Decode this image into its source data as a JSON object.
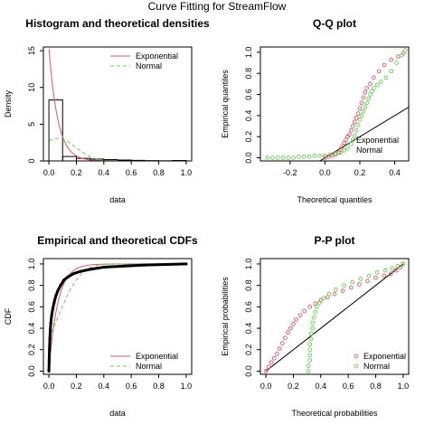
{
  "figure_title": "Curve Fitting for StreamFlow",
  "colors": {
    "exponential": "#DF536B",
    "normal": "#61D04F",
    "data": "#000000"
  },
  "chart_data": [
    {
      "id": "histogram",
      "type": "bar",
      "title": "Histogram and theoretical densities",
      "xlabel": "data",
      "ylabel": "Density",
      "xlim": [
        -0.04,
        1.04
      ],
      "ylim": [
        0,
        15.5
      ],
      "xticks": [
        0.0,
        0.2,
        0.4,
        0.6,
        0.8,
        1.0
      ],
      "xtick_labels": [
        "0.0",
        "0.2",
        "0.4",
        "0.6",
        "0.8",
        "1.0"
      ],
      "yticks": [
        0,
        5,
        10,
        15
      ],
      "ytick_labels": [
        "0",
        "5",
        "10",
        "15"
      ],
      "bins": [
        {
          "x0": 0.0,
          "x1": 0.1,
          "density": 8.3
        },
        {
          "x0": 0.1,
          "x1": 0.2,
          "density": 0.6
        },
        {
          "x0": 0.2,
          "x1": 0.3,
          "density": 0.35
        },
        {
          "x0": 0.3,
          "x1": 0.4,
          "density": 0.25
        },
        {
          "x0": 0.4,
          "x1": 0.5,
          "density": 0.18
        },
        {
          "x0": 0.5,
          "x1": 0.6,
          "density": 0.12
        },
        {
          "x0": 0.6,
          "x1": 0.7,
          "density": 0.08
        },
        {
          "x0": 0.7,
          "x1": 0.8,
          "density": 0.04
        },
        {
          "x0": 0.8,
          "x1": 0.9,
          "density": 0.02
        },
        {
          "x0": 0.9,
          "x1": 1.0,
          "density": 0.06
        }
      ],
      "curves": [
        {
          "name": "Exponential",
          "dist": "exp",
          "rate": 15.5
        },
        {
          "name": "Normal",
          "dist": "norm",
          "mean": 0.065,
          "sd": 0.13
        }
      ],
      "legend": [
        "Exponential",
        "Normal"
      ],
      "legend_position": "top-right"
    },
    {
      "id": "qq",
      "type": "scatter",
      "title": "Q-Q plot",
      "xlabel": "Theoretical quantiles",
      "ylabel": "Empirical quantiles",
      "xlim": [
        -0.37,
        0.48
      ],
      "ylim": [
        -0.03,
        1.05
      ],
      "xticks": [
        -0.2,
        0.0,
        0.2,
        0.4
      ],
      "xtick_labels": [
        "-0.2",
        "0.0",
        "0.2",
        "0.4"
      ],
      "yticks": [
        0.0,
        0.2,
        0.4,
        0.6,
        0.8,
        1.0
      ],
      "ytick_labels": [
        "0.0",
        "0.2",
        "0.4",
        "0.6",
        "0.8",
        "1.0"
      ],
      "series": [
        {
          "name": "Exponential",
          "points": [
            [
              0.0,
              0.0
            ],
            [
              0.02,
              0.01
            ],
            [
              0.04,
              0.02
            ],
            [
              0.06,
              0.03
            ],
            [
              0.08,
              0.05
            ],
            [
              0.09,
              0.08
            ],
            [
              0.1,
              0.11
            ],
            [
              0.11,
              0.14
            ],
            [
              0.12,
              0.17
            ],
            [
              0.13,
              0.2
            ],
            [
              0.14,
              0.22
            ],
            [
              0.15,
              0.26
            ],
            [
              0.16,
              0.3
            ],
            [
              0.17,
              0.34
            ],
            [
              0.18,
              0.38
            ],
            [
              0.19,
              0.42
            ],
            [
              0.2,
              0.47
            ],
            [
              0.21,
              0.52
            ],
            [
              0.22,
              0.57
            ],
            [
              0.23,
              0.62
            ],
            [
              0.24,
              0.66
            ],
            [
              0.26,
              0.7
            ],
            [
              0.28,
              0.76
            ],
            [
              0.31,
              0.82
            ],
            [
              0.34,
              0.88
            ],
            [
              0.38,
              0.93
            ],
            [
              0.42,
              0.96
            ],
            [
              0.45,
              0.99
            ]
          ]
        },
        {
          "name": "Normal",
          "points": [
            [
              -0.33,
              0.0
            ],
            [
              -0.3,
              0.0
            ],
            [
              -0.27,
              0.0
            ],
            [
              -0.24,
              0.0
            ],
            [
              -0.21,
              0.0
            ],
            [
              -0.18,
              0.0
            ],
            [
              -0.15,
              0.01
            ],
            [
              -0.12,
              0.01
            ],
            [
              -0.09,
              0.01
            ],
            [
              -0.06,
              0.02
            ],
            [
              -0.03,
              0.02
            ],
            [
              0.0,
              0.02
            ],
            [
              0.03,
              0.03
            ],
            [
              0.06,
              0.04
            ],
            [
              0.09,
              0.05
            ],
            [
              0.11,
              0.07
            ],
            [
              0.13,
              0.09
            ],
            [
              0.15,
              0.13
            ],
            [
              0.16,
              0.17
            ],
            [
              0.17,
              0.21
            ],
            [
              0.18,
              0.26
            ],
            [
              0.19,
              0.31
            ],
            [
              0.2,
              0.36
            ],
            [
              0.21,
              0.4
            ],
            [
              0.22,
              0.44
            ],
            [
              0.23,
              0.48
            ],
            [
              0.24,
              0.52
            ],
            [
              0.25,
              0.56
            ],
            [
              0.26,
              0.6
            ],
            [
              0.27,
              0.63
            ],
            [
              0.28,
              0.66
            ],
            [
              0.3,
              0.69
            ],
            [
              0.32,
              0.72
            ],
            [
              0.35,
              0.76
            ],
            [
              0.38,
              0.82
            ],
            [
              0.41,
              0.9
            ],
            [
              0.44,
              0.97
            ],
            [
              0.46,
              1.02
            ]
          ]
        }
      ],
      "reference_line": [
        [
          -0.37,
          -0.37
        ],
        [
          0.48,
          0.48
        ]
      ],
      "legend": [
        "Exponential",
        "Normal"
      ],
      "legend_position": "bottom-right"
    },
    {
      "id": "cdf",
      "type": "line",
      "title": "Empirical and theoretical CDFs",
      "xlabel": "data",
      "ylabel": "CDF",
      "xlim": [
        -0.04,
        1.04
      ],
      "ylim": [
        -0.03,
        1.05
      ],
      "xticks": [
        0.0,
        0.2,
        0.4,
        0.6,
        0.8,
        1.0
      ],
      "xtick_labels": [
        "0.0",
        "0.2",
        "0.4",
        "0.6",
        "0.8",
        "1.0"
      ],
      "yticks": [
        0.0,
        0.2,
        0.4,
        0.6,
        0.8,
        1.0
      ],
      "ytick_labels": [
        "0.0",
        "0.2",
        "0.4",
        "0.6",
        "0.8",
        "1.0"
      ],
      "empirical": [
        [
          0.0,
          0.0
        ],
        [
          0.002,
          0.1
        ],
        [
          0.004,
          0.2
        ],
        [
          0.007,
          0.3
        ],
        [
          0.01,
          0.38
        ],
        [
          0.014,
          0.45
        ],
        [
          0.02,
          0.52
        ],
        [
          0.028,
          0.58
        ],
        [
          0.038,
          0.64
        ],
        [
          0.05,
          0.7
        ],
        [
          0.065,
          0.75
        ],
        [
          0.085,
          0.8
        ],
        [
          0.11,
          0.85
        ],
        [
          0.14,
          0.88
        ],
        [
          0.18,
          0.91
        ],
        [
          0.23,
          0.93
        ],
        [
          0.3,
          0.95
        ],
        [
          0.4,
          0.97
        ],
        [
          0.55,
          0.98
        ],
        [
          0.7,
          0.99
        ],
        [
          1.0,
          1.0
        ]
      ],
      "curves": [
        {
          "name": "Exponential",
          "dist": "exp",
          "rate": 15.5
        },
        {
          "name": "Normal",
          "dist": "norm",
          "mean": 0.065,
          "sd": 0.13
        }
      ],
      "legend": [
        "Exponential",
        "Normal"
      ],
      "legend_position": "bottom-right"
    },
    {
      "id": "pp",
      "type": "scatter",
      "title": "P-P plot",
      "xlabel": "Theoretical probabilities",
      "ylabel": "Empirical probabilities",
      "xlim": [
        -0.04,
        1.04
      ],
      "ylim": [
        -0.03,
        1.05
      ],
      "xticks": [
        0.0,
        0.2,
        0.4,
        0.6,
        0.8,
        1.0
      ],
      "xtick_labels": [
        "0.0",
        "0.2",
        "0.4",
        "0.6",
        "0.8",
        "1.0"
      ],
      "yticks": [
        0.0,
        0.2,
        0.4,
        0.6,
        0.8,
        1.0
      ],
      "ytick_labels": [
        "0.0",
        "0.2",
        "0.4",
        "0.6",
        "0.8",
        "1.0"
      ],
      "series": [
        {
          "name": "Exponential",
          "points": [
            [
              0.0,
              0.0
            ],
            [
              0.02,
              0.04
            ],
            [
              0.04,
              0.08
            ],
            [
              0.06,
              0.12
            ],
            [
              0.08,
              0.16
            ],
            [
              0.1,
              0.21
            ],
            [
              0.12,
              0.26
            ],
            [
              0.14,
              0.31
            ],
            [
              0.16,
              0.36
            ],
            [
              0.18,
              0.4
            ],
            [
              0.2,
              0.44
            ],
            [
              0.22,
              0.48
            ],
            [
              0.25,
              0.52
            ],
            [
              0.28,
              0.56
            ],
            [
              0.32,
              0.6
            ],
            [
              0.36,
              0.63
            ],
            [
              0.4,
              0.66
            ],
            [
              0.45,
              0.69
            ],
            [
              0.5,
              0.72
            ],
            [
              0.56,
              0.75
            ],
            [
              0.62,
              0.78
            ],
            [
              0.68,
              0.81
            ],
            [
              0.74,
              0.84
            ],
            [
              0.8,
              0.87
            ],
            [
              0.86,
              0.89
            ],
            [
              0.91,
              0.91
            ],
            [
              0.95,
              0.94
            ],
            [
              0.98,
              0.97
            ],
            [
              1.0,
              1.0
            ]
          ]
        },
        {
          "name": "Normal",
          "points": [
            [
              0.31,
              0.0
            ],
            [
              0.31,
              0.05
            ],
            [
              0.32,
              0.1
            ],
            [
              0.32,
              0.15
            ],
            [
              0.32,
              0.2
            ],
            [
              0.32,
              0.25
            ],
            [
              0.33,
              0.3
            ],
            [
              0.33,
              0.35
            ],
            [
              0.34,
              0.4
            ],
            [
              0.34,
              0.45
            ],
            [
              0.35,
              0.5
            ],
            [
              0.36,
              0.55
            ],
            [
              0.37,
              0.6
            ],
            [
              0.39,
              0.64
            ],
            [
              0.42,
              0.68
            ],
            [
              0.46,
              0.72
            ],
            [
              0.51,
              0.76
            ],
            [
              0.57,
              0.8
            ],
            [
              0.63,
              0.83
            ],
            [
              0.69,
              0.86
            ],
            [
              0.75,
              0.89
            ],
            [
              0.81,
              0.92
            ],
            [
              0.87,
              0.94
            ],
            [
              0.92,
              0.96
            ],
            [
              0.96,
              0.98
            ],
            [
              1.0,
              1.0
            ]
          ]
        }
      ],
      "reference_line": [
        [
          0,
          0
        ],
        [
          1,
          1
        ]
      ],
      "legend": [
        "Exponential",
        "Normal"
      ],
      "legend_position": "bottom-right"
    }
  ]
}
